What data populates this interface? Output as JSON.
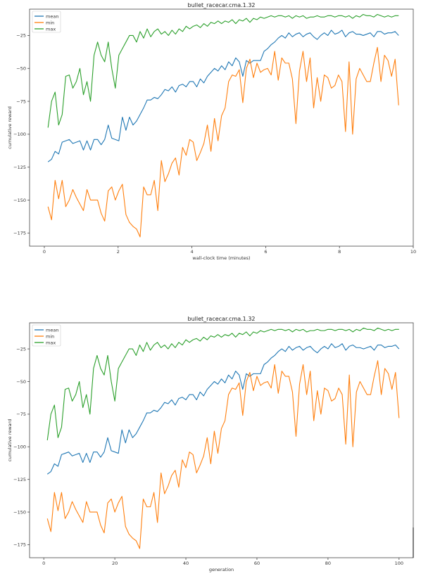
{
  "colors": {
    "mean": "#1f77b4",
    "min": "#ff7f0e",
    "max": "#2ca02c"
  },
  "chart_data": [
    {
      "type": "line",
      "title": "bullet_racecar.cma.1.32",
      "xlabel": "wall-clock time (minutes)",
      "ylabel": "cumulative reward",
      "xlim": [
        -0.4,
        10
      ],
      "ylim": [
        -185,
        -5
      ],
      "xticks": [
        0,
        2,
        4,
        6,
        8,
        10
      ],
      "yticks": [
        -25,
        -50,
        -75,
        -100,
        -125,
        -150,
        -175
      ],
      "legend_position": "top-left",
      "x": [
        0.1,
        0.196,
        0.292,
        0.388,
        0.484,
        0.58,
        0.676,
        0.772,
        0.868,
        0.964,
        1.06,
        1.156,
        1.252,
        1.348,
        1.444,
        1.54,
        1.636,
        1.732,
        1.828,
        1.924,
        2.02,
        2.116,
        2.212,
        2.308,
        2.404,
        2.5,
        2.596,
        2.692,
        2.788,
        2.884,
        2.98,
        3.076,
        3.172,
        3.268,
        3.364,
        3.46,
        3.556,
        3.652,
        3.748,
        3.844,
        3.94,
        4.036,
        4.132,
        4.228,
        4.324,
        4.42,
        4.516,
        4.612,
        4.708,
        4.804,
        4.9,
        4.996,
        5.092,
        5.188,
        5.284,
        5.38,
        5.476,
        5.572,
        5.668,
        5.764,
        5.86,
        5.956,
        6.052,
        6.148,
        6.244,
        6.34,
        6.436,
        6.532,
        6.628,
        6.724,
        6.82,
        6.916,
        7.012,
        7.108,
        7.204,
        7.3,
        7.396,
        7.492,
        7.588,
        7.684,
        7.78,
        7.876,
        7.972,
        8.068,
        8.164,
        8.26,
        8.356,
        8.452,
        8.548,
        8.644,
        8.74,
        8.836,
        8.932,
        9.028,
        9.124,
        9.22,
        9.316,
        9.412,
        9.508,
        9.604
      ],
      "series": [
        {
          "name": "mean",
          "values": [
            -121,
            -119,
            -113,
            -115,
            -106,
            -105,
            -104,
            -107,
            -106,
            -105,
            -112,
            -105,
            -112,
            -104,
            -104,
            -108,
            -104,
            -93,
            -103,
            -104,
            -105,
            -87,
            -97,
            -87,
            -93,
            -90,
            -85,
            -80,
            -74,
            -74,
            -72,
            -73,
            -70,
            -66,
            -67,
            -64,
            -68,
            -63,
            -62,
            -64,
            -60,
            -60,
            -64,
            -58,
            -61,
            -56,
            -53,
            -50,
            -52,
            -48,
            -51,
            -45,
            -48,
            -42,
            -45,
            -56,
            -44,
            -46,
            -44,
            -44,
            -44,
            -37,
            -35,
            -32,
            -30,
            -27,
            -25,
            -27,
            -23,
            -26,
            -24,
            -23,
            -26,
            -24,
            -23,
            -26,
            -28,
            -25,
            -23,
            -25,
            -21,
            -24,
            -23,
            -21,
            -26,
            -23,
            -22,
            -24,
            -24,
            -25,
            -24,
            -23,
            -26,
            -22,
            -22,
            -24,
            -23,
            -23,
            -22,
            -25
          ],
          "smooth": true
        },
        {
          "name": "min",
          "values": [
            -155,
            -165,
            -135,
            -149,
            -135,
            -155,
            -150,
            -142,
            -148,
            -153,
            -158,
            -142,
            -150,
            -150,
            -150,
            -160,
            -166,
            -143,
            -140,
            -150,
            -143,
            -138,
            -161,
            -167,
            -170,
            -172,
            -178,
            -140,
            -146,
            -146,
            -135,
            -158,
            -120,
            -136,
            -130,
            -122,
            -118,
            -131,
            -110,
            -116,
            -104,
            -106,
            -120,
            -114,
            -107,
            -93,
            -113,
            -88,
            -105,
            -86,
            -80,
            -60,
            -55,
            -56,
            -51,
            -76,
            -50,
            -43,
            -57,
            -46,
            -53,
            -51,
            -50,
            -55,
            -37,
            -59,
            -42,
            -46,
            -46,
            -58,
            -92,
            -52,
            -37,
            -60,
            -42,
            -80,
            -57,
            -75,
            -55,
            -57,
            -65,
            -63,
            -55,
            -60,
            -98,
            -45,
            -100,
            -58,
            -50,
            -55,
            -60,
            -60,
            -46,
            -34,
            -60,
            -40,
            -44,
            -56,
            -43,
            -78
          ],
          "smooth": false
        },
        {
          "name": "max",
          "values": [
            -95,
            -75,
            -68,
            -93,
            -85,
            -56,
            -55,
            -65,
            -60,
            -50,
            -70,
            -60,
            -75,
            -40,
            -30,
            -40,
            -45,
            -30,
            -50,
            -65,
            -40,
            -35,
            -30,
            -25,
            -25,
            -30,
            -22,
            -27,
            -20,
            -26,
            -22,
            -20,
            -24,
            -22,
            -25,
            -21,
            -24,
            -20,
            -22,
            -18,
            -20,
            -18,
            -17,
            -19,
            -16,
            -18,
            -15,
            -16,
            -14,
            -16,
            -14,
            -15,
            -13,
            -16,
            -13,
            -14,
            -12,
            -15,
            -12,
            -13,
            -11,
            -12,
            -11,
            -10,
            -11,
            -10,
            -10,
            -11,
            -10,
            -12,
            -10,
            -11,
            -10,
            -12,
            -11,
            -11,
            -10,
            -11,
            -11,
            -10,
            -10,
            -11,
            -10,
            -10,
            -11,
            -10,
            -12,
            -10,
            -11,
            -9,
            -10,
            -10,
            -11,
            -9,
            -10,
            -11,
            -10,
            -11,
            -10,
            -10
          ],
          "smooth": true
        }
      ]
    },
    {
      "type": "line",
      "title": "bullet_racecar.cma.1.32",
      "xlabel": "generation",
      "ylabel": "cumulative reward",
      "xlim": [
        -4,
        104
      ],
      "ylim": [
        -185,
        -5
      ],
      "xticks": [
        0,
        20,
        40,
        60,
        80,
        100
      ],
      "yticks": [
        -25,
        -50,
        -75,
        -100,
        -125,
        -150,
        -175
      ],
      "legend_position": "top-left",
      "x": [
        1,
        2,
        3,
        4,
        5,
        6,
        7,
        8,
        9,
        10,
        11,
        12,
        13,
        14,
        15,
        16,
        17,
        18,
        19,
        20,
        21,
        22,
        23,
        24,
        25,
        26,
        27,
        28,
        29,
        30,
        31,
        32,
        33,
        34,
        35,
        36,
        37,
        38,
        39,
        40,
        41,
        42,
        43,
        44,
        45,
        46,
        47,
        48,
        49,
        50,
        51,
        52,
        53,
        54,
        55,
        56,
        57,
        58,
        59,
        60,
        61,
        62,
        63,
        64,
        65,
        66,
        67,
        68,
        69,
        70,
        71,
        72,
        73,
        74,
        75,
        76,
        77,
        78,
        79,
        80,
        81,
        82,
        83,
        84,
        85,
        86,
        87,
        88,
        89,
        90,
        91,
        92,
        93,
        94,
        95,
        96,
        97,
        98,
        99,
        100
      ],
      "series": [
        {
          "name": "mean",
          "values": [
            -121,
            -119,
            -113,
            -115,
            -106,
            -105,
            -104,
            -107,
            -106,
            -105,
            -112,
            -105,
            -112,
            -104,
            -104,
            -108,
            -104,
            -93,
            -103,
            -104,
            -105,
            -87,
            -97,
            -87,
            -93,
            -90,
            -85,
            -80,
            -74,
            -74,
            -72,
            -73,
            -70,
            -66,
            -67,
            -64,
            -68,
            -63,
            -62,
            -64,
            -60,
            -60,
            -64,
            -58,
            -61,
            -56,
            -53,
            -50,
            -52,
            -48,
            -51,
            -45,
            -48,
            -42,
            -45,
            -56,
            -44,
            -46,
            -44,
            -44,
            -44,
            -37,
            -35,
            -32,
            -30,
            -27,
            -25,
            -27,
            -23,
            -26,
            -24,
            -23,
            -26,
            -24,
            -23,
            -26,
            -28,
            -25,
            -23,
            -25,
            -21,
            -24,
            -23,
            -21,
            -26,
            -23,
            -22,
            -24,
            -24,
            -25,
            -24,
            -23,
            -26,
            -22,
            -22,
            -24,
            -23,
            -23,
            -22,
            -25
          ],
          "smooth": true
        },
        {
          "name": "min",
          "values": [
            -155,
            -165,
            -135,
            -149,
            -135,
            -155,
            -150,
            -142,
            -148,
            -153,
            -158,
            -142,
            -150,
            -150,
            -150,
            -160,
            -166,
            -143,
            -140,
            -150,
            -143,
            -138,
            -161,
            -167,
            -170,
            -172,
            -178,
            -140,
            -146,
            -146,
            -135,
            -158,
            -120,
            -136,
            -130,
            -122,
            -118,
            -131,
            -110,
            -116,
            -104,
            -106,
            -120,
            -114,
            -107,
            -93,
            -113,
            -88,
            -105,
            -86,
            -80,
            -60,
            -55,
            -56,
            -51,
            -76,
            -50,
            -43,
            -57,
            -46,
            -53,
            -51,
            -50,
            -55,
            -37,
            -59,
            -42,
            -46,
            -46,
            -58,
            -92,
            -52,
            -37,
            -60,
            -42,
            -80,
            -57,
            -75,
            -55,
            -57,
            -65,
            -63,
            -55,
            -60,
            -98,
            -45,
            -100,
            -58,
            -50,
            -55,
            -60,
            -60,
            -46,
            -34,
            -60,
            -40,
            -44,
            -56,
            -43,
            -78
          ],
          "smooth": false
        },
        {
          "name": "max",
          "values": [
            -95,
            -75,
            -68,
            -93,
            -85,
            -56,
            -55,
            -65,
            -60,
            -50,
            -70,
            -60,
            -75,
            -40,
            -30,
            -40,
            -45,
            -30,
            -50,
            -65,
            -40,
            -35,
            -30,
            -25,
            -25,
            -30,
            -22,
            -27,
            -20,
            -26,
            -22,
            -20,
            -24,
            -22,
            -25,
            -21,
            -24,
            -20,
            -22,
            -18,
            -20,
            -18,
            -17,
            -19,
            -16,
            -18,
            -15,
            -16,
            -14,
            -16,
            -14,
            -15,
            -13,
            -16,
            -13,
            -14,
            -12,
            -15,
            -12,
            -13,
            -11,
            -12,
            -11,
            -10,
            -11,
            -10,
            -10,
            -11,
            -10,
            -12,
            -10,
            -11,
            -10,
            -12,
            -11,
            -11,
            -10,
            -11,
            -11,
            -10,
            -10,
            -11,
            -10,
            -10,
            -11,
            -10,
            -12,
            -10,
            -11,
            -9,
            -10,
            -10,
            -11,
            -9,
            -10,
            -11,
            -10,
            -11,
            -10,
            -10
          ],
          "smooth": true
        }
      ]
    }
  ]
}
